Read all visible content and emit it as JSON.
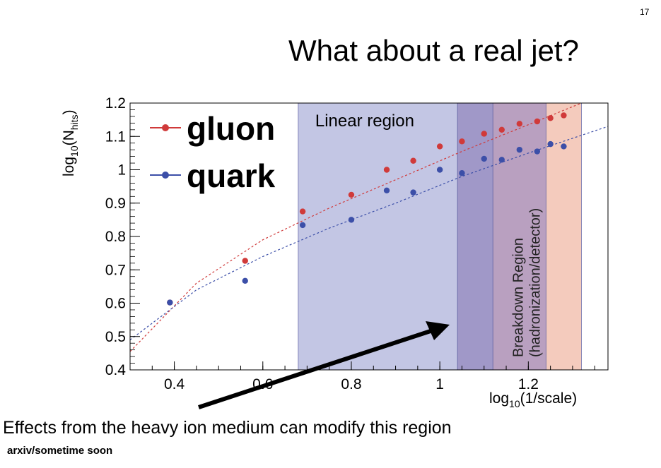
{
  "slide": {
    "number": "17",
    "title": "What about a real jet?",
    "caption": "Effects from the heavy ion medium can modify this region",
    "footnote": "arxiv/sometime soon"
  },
  "chart_data": {
    "type": "scatter",
    "title": "",
    "xlabel": {
      "base": "log",
      "sub": "10",
      "rest": "(1/scale)"
    },
    "ylabel": {
      "base": "log",
      "sub": "10",
      "mid": "(N",
      "sub2": "hits",
      "end": ")"
    },
    "xlim": [
      0.3,
      1.38
    ],
    "ylim": [
      0.4,
      1.2
    ],
    "x_ticks": [
      0.4,
      0.6,
      0.8,
      1,
      1.2
    ],
    "x_tick_labels": [
      "0.4",
      "0.6",
      "0.8",
      "1",
      "1.2"
    ],
    "y_ticks": [
      0.4,
      0.5,
      0.6,
      0.7,
      0.8,
      0.9,
      1,
      1.1,
      1.2
    ],
    "y_tick_labels": [
      "0.4",
      "0.5",
      "0.6",
      "0.7",
      "0.8",
      "0.9",
      "1",
      "1.1",
      "1.2"
    ],
    "grid": false,
    "legend_position": "top-left",
    "series": [
      {
        "name": "gluon",
        "color": "#d03a3a",
        "x": [
          0.39,
          0.56,
          0.69,
          0.8,
          0.88,
          0.94,
          1.0,
          1.05,
          1.1,
          1.14,
          1.18,
          1.22,
          1.25,
          1.28
        ],
        "y": [
          0.602,
          0.727,
          0.875,
          0.925,
          1.0,
          1.027,
          1.07,
          1.085,
          1.108,
          1.12,
          1.138,
          1.145,
          1.155,
          1.163
        ]
      },
      {
        "name": "quark",
        "color": "#3c4fa8",
        "x": [
          0.39,
          0.56,
          0.69,
          0.8,
          0.88,
          0.94,
          1.0,
          1.05,
          1.1,
          1.14,
          1.18,
          1.22,
          1.25,
          1.28
        ],
        "y": [
          0.602,
          0.667,
          0.834,
          0.85,
          0.938,
          0.932,
          1.0,
          0.99,
          1.033,
          1.03,
          1.06,
          1.055,
          1.077,
          1.07
        ]
      }
    ],
    "fit_lines": [
      {
        "series": "gluon",
        "x": [
          0.3,
          0.45,
          0.6,
          0.75,
          0.9,
          1.05,
          1.2,
          1.32
        ],
        "y": [
          0.455,
          0.66,
          0.79,
          0.885,
          0.97,
          1.055,
          1.135,
          1.2
        ]
      },
      {
        "series": "quark",
        "x": [
          0.3,
          0.45,
          0.6,
          0.75,
          0.9,
          1.05,
          1.2,
          1.38
        ],
        "y": [
          0.49,
          0.64,
          0.74,
          0.825,
          0.9,
          0.98,
          1.05,
          1.13
        ]
      }
    ],
    "regions": [
      {
        "label": "Linear region",
        "x0": 0.68,
        "x1": 1.04,
        "color": "#b9bcdf"
      },
      {
        "label": "",
        "x0": 1.04,
        "x1": 1.12,
        "color": "#8f86be"
      },
      {
        "label": "Breakdown Region",
        "label2": "(hadronization/detector)",
        "x0": 1.12,
        "x1": 1.24,
        "color": "#ad8fb5"
      },
      {
        "label": "",
        "x0": 1.24,
        "x1": 1.32,
        "color": "#f2c2b2"
      }
    ],
    "annotations": [
      "Linear region",
      "Breakdown Region",
      "(hadronization/detector)"
    ]
  }
}
